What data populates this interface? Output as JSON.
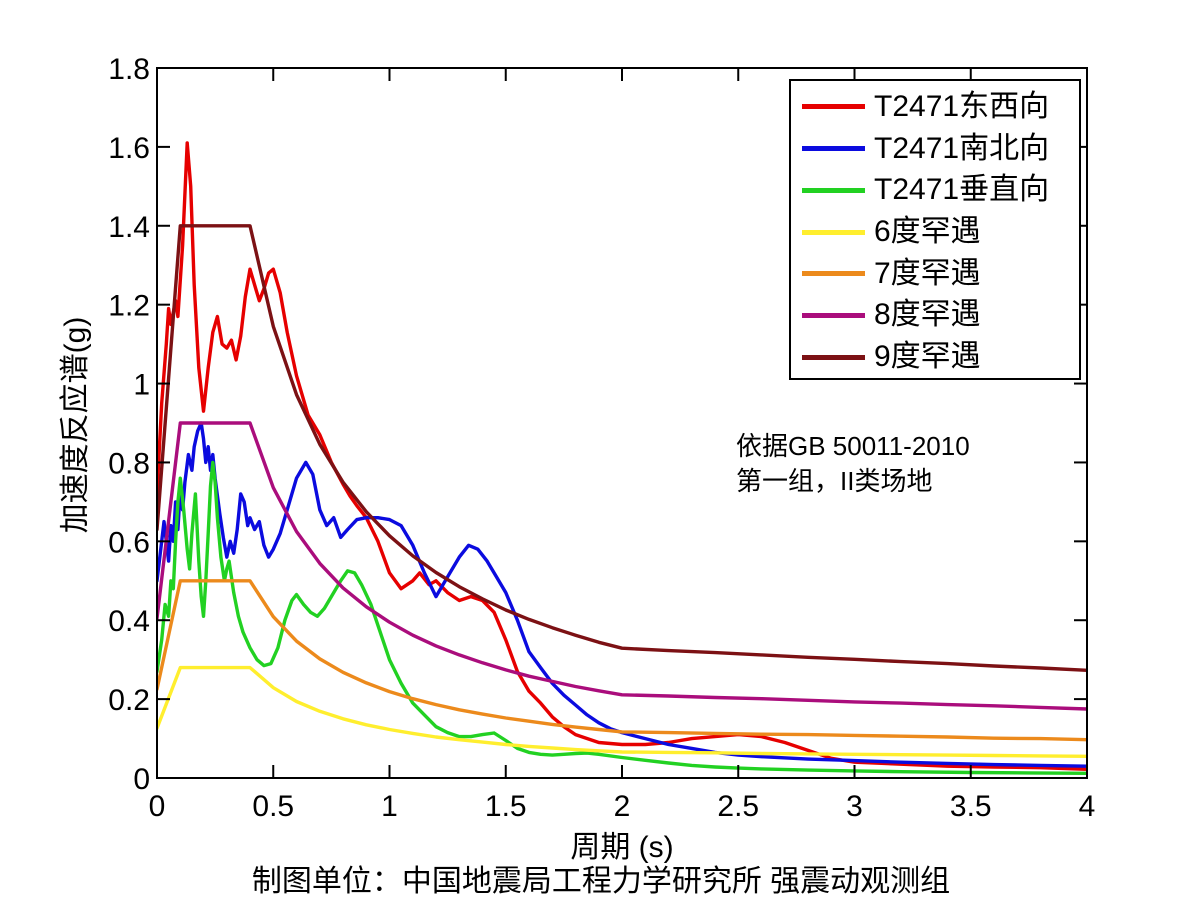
{
  "figure": {
    "background": "#ffffff",
    "axis_color": "#000000"
  },
  "chart_data": {
    "type": "line",
    "title": "",
    "xlabel": "周期 (s)",
    "ylabel": "加速度反应谱(g)",
    "caption": "制图单位：中国地震局工程力学研究所 强震动观测组",
    "annotation": [
      "依据GB 50011-2010",
      "第一组，II类场地"
    ],
    "xlim": [
      0,
      4
    ],
    "ylim": [
      0,
      1.8
    ],
    "grid": false,
    "legend_position": "upper-right",
    "xticks": [
      0,
      0.5,
      1,
      1.5,
      2,
      2.5,
      3,
      3.5,
      4
    ],
    "xtick_labels": [
      "0",
      "0.5",
      "1",
      "1.5",
      "2",
      "2.5",
      "3",
      "3.5",
      "4"
    ],
    "yticks": [
      0,
      0.2,
      0.4,
      0.6,
      0.8,
      1,
      1.2,
      1.4,
      1.6,
      1.8
    ],
    "ytick_labels": [
      "0",
      "0.2",
      "0.4",
      "0.6",
      "0.8",
      "1",
      "1.2",
      "1.4",
      "1.6",
      "1.8"
    ],
    "series": [
      {
        "name": "T2471东西向",
        "color": "#e60000",
        "x": [
          0,
          0.02,
          0.04,
          0.05,
          0.06,
          0.08,
          0.09,
          0.11,
          0.13,
          0.145,
          0.16,
          0.18,
          0.2,
          0.22,
          0.24,
          0.26,
          0.28,
          0.3,
          0.32,
          0.34,
          0.36,
          0.38,
          0.4,
          0.42,
          0.44,
          0.46,
          0.48,
          0.5,
          0.53,
          0.56,
          0.6,
          0.65,
          0.7,
          0.75,
          0.8,
          0.83,
          0.86,
          0.9,
          0.95,
          1.0,
          1.05,
          1.1,
          1.13,
          1.17,
          1.2,
          1.25,
          1.3,
          1.35,
          1.4,
          1.45,
          1.5,
          1.55,
          1.6,
          1.65,
          1.7,
          1.75,
          1.8,
          1.9,
          2.0,
          2.1,
          2.2,
          2.3,
          2.4,
          2.5,
          2.6,
          2.7,
          2.8,
          2.9,
          3.0,
          3.2,
          3.4,
          3.6,
          3.8,
          4.0
        ],
        "y": [
          0.72,
          0.95,
          1.1,
          1.19,
          1.15,
          1.21,
          1.17,
          1.35,
          1.61,
          1.5,
          1.25,
          1.04,
          0.93,
          1.04,
          1.13,
          1.17,
          1.1,
          1.09,
          1.11,
          1.06,
          1.12,
          1.22,
          1.29,
          1.25,
          1.21,
          1.24,
          1.28,
          1.29,
          1.23,
          1.13,
          1.02,
          0.92,
          0.87,
          0.8,
          0.745,
          0.715,
          0.69,
          0.66,
          0.6,
          0.52,
          0.48,
          0.5,
          0.52,
          0.49,
          0.5,
          0.47,
          0.45,
          0.46,
          0.45,
          0.42,
          0.35,
          0.27,
          0.22,
          0.19,
          0.155,
          0.13,
          0.11,
          0.09,
          0.085,
          0.085,
          0.09,
          0.1,
          0.105,
          0.11,
          0.105,
          0.09,
          0.07,
          0.05,
          0.04,
          0.035,
          0.03,
          0.028,
          0.026,
          0.022
        ]
      },
      {
        "name": "T2471南北向",
        "color": "#0b0bdf",
        "x": [
          0,
          0.02,
          0.03,
          0.04,
          0.05,
          0.06,
          0.07,
          0.08,
          0.09,
          0.1,
          0.11,
          0.12,
          0.135,
          0.15,
          0.16,
          0.175,
          0.19,
          0.2,
          0.21,
          0.22,
          0.23,
          0.24,
          0.25,
          0.27,
          0.285,
          0.3,
          0.315,
          0.33,
          0.345,
          0.36,
          0.375,
          0.39,
          0.4,
          0.42,
          0.44,
          0.46,
          0.48,
          0.5,
          0.53,
          0.56,
          0.6,
          0.64,
          0.67,
          0.7,
          0.73,
          0.76,
          0.79,
          0.82,
          0.86,
          0.9,
          0.95,
          1.0,
          1.05,
          1.1,
          1.15,
          1.2,
          1.25,
          1.3,
          1.34,
          1.38,
          1.42,
          1.46,
          1.5,
          1.55,
          1.6,
          1.65,
          1.7,
          1.75,
          1.8,
          1.85,
          1.9,
          1.95,
          2.0,
          2.1,
          2.2,
          2.3,
          2.4,
          2.5,
          2.6,
          2.8,
          3.0,
          3.2,
          3.4,
          3.6,
          3.8,
          4.0
        ],
        "y": [
          0.5,
          0.6,
          0.65,
          0.6,
          0.55,
          0.64,
          0.6,
          0.7,
          0.63,
          0.73,
          0.68,
          0.75,
          0.82,
          0.78,
          0.84,
          0.88,
          0.9,
          0.86,
          0.8,
          0.84,
          0.78,
          0.82,
          0.76,
          0.67,
          0.61,
          0.56,
          0.6,
          0.57,
          0.63,
          0.72,
          0.7,
          0.64,
          0.66,
          0.63,
          0.65,
          0.59,
          0.56,
          0.58,
          0.62,
          0.68,
          0.76,
          0.8,
          0.77,
          0.68,
          0.64,
          0.66,
          0.61,
          0.63,
          0.655,
          0.66,
          0.66,
          0.655,
          0.64,
          0.59,
          0.52,
          0.46,
          0.51,
          0.56,
          0.59,
          0.58,
          0.55,
          0.51,
          0.47,
          0.4,
          0.32,
          0.28,
          0.24,
          0.21,
          0.185,
          0.16,
          0.14,
          0.125,
          0.115,
          0.1,
          0.085,
          0.075,
          0.065,
          0.058,
          0.054,
          0.048,
          0.044,
          0.04,
          0.037,
          0.034,
          0.032,
          0.03
        ]
      },
      {
        "name": "T2471垂直向",
        "color": "#22d122",
        "x": [
          0,
          0.02,
          0.035,
          0.05,
          0.06,
          0.07,
          0.08,
          0.09,
          0.1,
          0.115,
          0.13,
          0.14,
          0.15,
          0.165,
          0.18,
          0.19,
          0.2,
          0.21,
          0.22,
          0.23,
          0.24,
          0.25,
          0.26,
          0.275,
          0.29,
          0.3,
          0.31,
          0.33,
          0.35,
          0.37,
          0.4,
          0.43,
          0.46,
          0.49,
          0.52,
          0.55,
          0.58,
          0.6,
          0.63,
          0.66,
          0.69,
          0.72,
          0.76,
          0.79,
          0.82,
          0.85,
          0.88,
          0.92,
          0.96,
          1.0,
          1.05,
          1.1,
          1.15,
          1.2,
          1.25,
          1.3,
          1.35,
          1.4,
          1.45,
          1.5,
          1.55,
          1.6,
          1.65,
          1.7,
          1.75,
          1.8,
          1.85,
          1.9,
          2.0,
          2.1,
          2.2,
          2.3,
          2.4,
          2.5,
          2.6,
          2.8,
          3.0,
          3.2,
          3.5,
          3.75,
          4.0
        ],
        "y": [
          0.27,
          0.35,
          0.44,
          0.41,
          0.5,
          0.48,
          0.6,
          0.7,
          0.76,
          0.68,
          0.58,
          0.53,
          0.62,
          0.72,
          0.55,
          0.46,
          0.41,
          0.5,
          0.62,
          0.74,
          0.8,
          0.75,
          0.66,
          0.56,
          0.5,
          0.53,
          0.55,
          0.47,
          0.41,
          0.37,
          0.33,
          0.3,
          0.285,
          0.29,
          0.33,
          0.4,
          0.45,
          0.465,
          0.44,
          0.42,
          0.41,
          0.43,
          0.47,
          0.5,
          0.525,
          0.52,
          0.49,
          0.44,
          0.37,
          0.3,
          0.24,
          0.19,
          0.16,
          0.13,
          0.115,
          0.105,
          0.105,
          0.11,
          0.114,
          0.095,
          0.075,
          0.065,
          0.06,
          0.058,
          0.06,
          0.062,
          0.063,
          0.06,
          0.052,
          0.045,
          0.038,
          0.032,
          0.028,
          0.025,
          0.023,
          0.02,
          0.018,
          0.016,
          0.014,
          0.013,
          0.012
        ]
      },
      {
        "name": "6度罕遇",
        "color": "#ffee2e",
        "x": [
          0,
          0.1,
          0.2,
          0.3,
          0.4,
          0.5,
          0.6,
          0.7,
          0.8,
          0.9,
          1.0,
          1.1,
          1.2,
          1.3,
          1.4,
          1.5,
          1.6,
          1.7,
          1.8,
          1.9,
          2.0,
          2.2,
          2.4,
          2.6,
          2.8,
          3.0,
          3.2,
          3.4,
          3.6,
          3.8,
          4.0
        ],
        "y": [
          0.126,
          0.28,
          0.28,
          0.28,
          0.28,
          0.229,
          0.194,
          0.169,
          0.15,
          0.135,
          0.123,
          0.113,
          0.104,
          0.097,
          0.091,
          0.085,
          0.08,
          0.076,
          0.072,
          0.069,
          0.066,
          0.065,
          0.064,
          0.062,
          0.061,
          0.06,
          0.059,
          0.058,
          0.057,
          0.056,
          0.055
        ]
      },
      {
        "name": "7度罕遇",
        "color": "#ec8a1c",
        "x": [
          0,
          0.1,
          0.2,
          0.3,
          0.4,
          0.5,
          0.6,
          0.7,
          0.8,
          0.9,
          1.0,
          1.1,
          1.2,
          1.3,
          1.4,
          1.5,
          1.6,
          1.7,
          1.8,
          1.9,
          2.0,
          2.2,
          2.4,
          2.6,
          2.8,
          3.0,
          3.2,
          3.4,
          3.6,
          3.8,
          4.0
        ],
        "y": [
          0.225,
          0.5,
          0.5,
          0.5,
          0.5,
          0.409,
          0.347,
          0.302,
          0.268,
          0.241,
          0.219,
          0.201,
          0.186,
          0.173,
          0.162,
          0.152,
          0.144,
          0.136,
          0.129,
          0.123,
          0.117,
          0.115,
          0.113,
          0.111,
          0.11,
          0.108,
          0.106,
          0.104,
          0.101,
          0.1,
          0.097
        ]
      },
      {
        "name": "8度罕遇",
        "color": "#aa0d7c",
        "x": [
          0,
          0.1,
          0.2,
          0.3,
          0.4,
          0.5,
          0.6,
          0.7,
          0.8,
          0.9,
          1.0,
          1.1,
          1.2,
          1.3,
          1.4,
          1.5,
          1.6,
          1.7,
          1.8,
          1.9,
          2.0,
          2.2,
          2.4,
          2.6,
          2.8,
          3.0,
          3.2,
          3.4,
          3.6,
          3.8,
          4.0
        ],
        "y": [
          0.405,
          0.9,
          0.9,
          0.9,
          0.9,
          0.736,
          0.625,
          0.544,
          0.482,
          0.434,
          0.395,
          0.362,
          0.335,
          0.312,
          0.292,
          0.274,
          0.258,
          0.245,
          0.232,
          0.221,
          0.211,
          0.208,
          0.204,
          0.201,
          0.197,
          0.193,
          0.19,
          0.186,
          0.183,
          0.179,
          0.175
        ]
      },
      {
        "name": "9度罕遇",
        "color": "#7c1114",
        "x": [
          0,
          0.1,
          0.2,
          0.3,
          0.4,
          0.5,
          0.6,
          0.7,
          0.8,
          0.9,
          1.0,
          1.1,
          1.2,
          1.3,
          1.4,
          1.5,
          1.6,
          1.7,
          1.8,
          1.9,
          2.0,
          2.2,
          2.4,
          2.6,
          2.8,
          3.0,
          3.2,
          3.4,
          3.6,
          3.8,
          4.0
        ],
        "y": [
          0.63,
          1.4,
          1.4,
          1.4,
          1.4,
          1.145,
          0.972,
          0.846,
          0.75,
          0.675,
          0.614,
          0.563,
          0.521,
          0.485,
          0.454,
          0.426,
          0.402,
          0.381,
          0.362,
          0.344,
          0.329,
          0.323,
          0.318,
          0.312,
          0.306,
          0.301,
          0.295,
          0.29,
          0.284,
          0.279,
          0.273
        ]
      }
    ]
  }
}
